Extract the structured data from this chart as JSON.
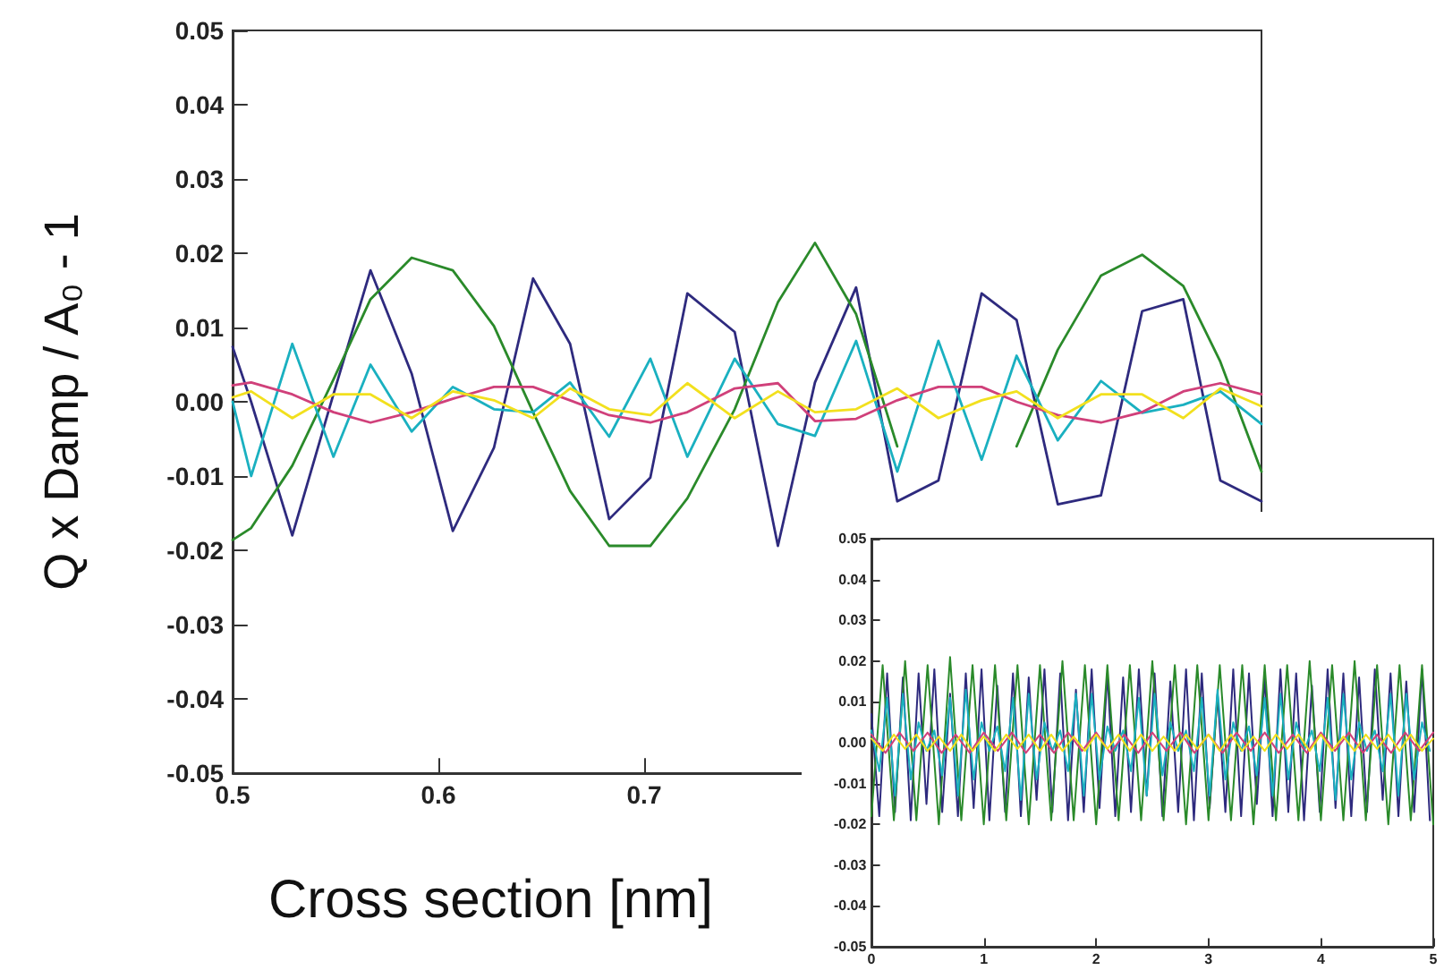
{
  "chart_data": [
    {
      "type": "line",
      "xlabel": "Cross section [nm]",
      "ylabel": "Q x Damp / A₀ - 1",
      "x": [
        0.5,
        0.509,
        0.529,
        0.549,
        0.567,
        0.587,
        0.607,
        0.627,
        0.646,
        0.664,
        0.683,
        0.703,
        0.721,
        0.744,
        0.765,
        0.783,
        0.803,
        0.823,
        0.843,
        0.864,
        0.881,
        0.901,
        0.922,
        0.942,
        0.962,
        0.98,
        1.0
      ],
      "series": [
        {
          "color": "#2e2a7e",
          "values": [
            0.0074,
            0.0,
            -0.018,
            0.001,
            0.0177,
            0.0038,
            -0.0174,
            -0.0062,
            0.0166,
            0.0078,
            -0.0158,
            -0.0102,
            0.0146,
            0.0094,
            -0.0194,
            0.0026,
            0.0154,
            -0.0134,
            -0.0106,
            0.0146,
            0.011,
            -0.0138,
            -0.0126,
            0.0122,
            0.0138,
            -0.0106,
            -0.0134
          ]
        },
        {
          "color": "#2a8a2a",
          "values": [
            -0.0186,
            -0.017,
            -0.0086,
            0.003,
            0.0138,
            0.0194,
            0.0177,
            0.0102,
            -0.0014,
            -0.012,
            -0.0194,
            -0.0194,
            -0.013,
            -0.001,
            0.0134,
            0.0214,
            0.0118,
            -0.006,
            null,
            null,
            -0.006,
            0.007,
            0.017,
            0.0198,
            0.0156,
            0.0054,
            -0.0094
          ]
        },
        {
          "color": "#1ab0c0",
          "values": [
            0.0,
            -0.01,
            0.0078,
            -0.0074,
            0.005,
            -0.004,
            0.002,
            -0.001,
            -0.0014,
            0.0026,
            -0.0047,
            0.0058,
            -0.0074,
            0.0058,
            -0.003,
            -0.0046,
            0.0082,
            -0.0094,
            0.0082,
            -0.0078,
            0.0062,
            -0.0052,
            0.0028,
            -0.0015,
            -0.0004,
            0.0014,
            -0.003
          ]
        },
        {
          "color": "#d0407a",
          "values": [
            0.0022,
            0.0026,
            0.001,
            -0.0014,
            -0.0028,
            -0.0014,
            0.0004,
            0.002,
            0.002,
            0.0002,
            -0.0018,
            -0.0028,
            -0.0014,
            0.0018,
            0.0025,
            -0.0026,
            -0.0023,
            0.0002,
            0.002,
            0.002,
            0.0,
            -0.0018,
            -0.0028,
            -0.0014,
            0.0014,
            0.0025,
            0.001
          ]
        },
        {
          "color": "#f2e01e",
          "values": [
            0.0006,
            0.0014,
            -0.0022,
            0.001,
            0.001,
            -0.0022,
            0.0014,
            0.0002,
            -0.0022,
            0.0018,
            -0.001,
            -0.0018,
            0.0025,
            -0.0022,
            0.0014,
            -0.0014,
            -0.001,
            0.0018,
            -0.0022,
            0.0002,
            0.0014,
            -0.0022,
            0.001,
            0.001,
            -0.0022,
            0.0018,
            -0.0006
          ]
        }
      ],
      "xlim": [
        0.5,
        1.0
      ],
      "xticks": [
        0.5,
        0.6,
        0.7
      ],
      "ylim": [
        -0.05,
        0.05
      ],
      "yticks": [
        -0.05,
        -0.04,
        -0.03,
        -0.02,
        -0.01,
        {
          "value": 0,
          "label": "0.00"
        },
        0.01,
        0.02,
        0.03,
        0.04,
        0.05
      ]
    },
    {
      "type": "line",
      "series": [
        {
          "color": "#2e2a7e",
          "x": [
            0,
            0.07,
            0.14,
            0.21,
            0.28,
            0.35,
            0.42,
            0.49,
            0.56,
            0.63,
            0.7,
            0.77,
            0.84,
            0.91,
            0.98,
            1.05,
            1.12,
            1.19,
            1.26,
            1.33,
            1.4,
            1.47,
            1.54,
            1.61,
            1.68,
            1.75,
            1.82,
            1.89,
            1.96,
            2.03,
            2.1,
            2.17,
            2.24,
            2.31,
            2.38,
            2.45,
            2.52,
            2.59,
            2.66,
            2.73,
            2.8,
            2.87,
            2.94,
            3.01,
            3.08,
            3.15,
            3.22,
            3.29,
            3.36,
            3.43,
            3.5,
            3.57,
            3.64,
            3.71,
            3.78,
            3.85,
            3.92,
            3.99,
            4.06,
            4.13,
            4.2,
            4.27,
            4.34,
            4.41,
            4.48,
            4.55,
            4.62,
            4.69,
            4.76,
            4.83,
            4.9,
            4.97
          ],
          "values": [
            0.007,
            -0.018,
            0.017,
            -0.017,
            0.016,
            -0.019,
            0.017,
            -0.015,
            0.018,
            -0.017,
            0.012,
            -0.018,
            0.017,
            -0.016,
            0.018,
            -0.019,
            0.014,
            -0.017,
            0.017,
            -0.018,
            0.016,
            -0.014,
            0.018,
            -0.017,
            0.017,
            -0.019,
            0.013,
            -0.017,
            0.018,
            -0.016,
            0.017,
            -0.018,
            0.016,
            -0.017,
            0.018,
            -0.013,
            0.017,
            -0.018,
            0.015,
            -0.017,
            0.018,
            -0.019,
            0.017,
            -0.016,
            0.012,
            -0.017,
            0.018,
            -0.018,
            0.017,
            -0.015,
            0.016,
            -0.018,
            0.018,
            -0.017,
            0.017,
            -0.019,
            0.014,
            -0.017,
            0.018,
            -0.016,
            0.017,
            -0.018,
            0.016,
            -0.017,
            0.018,
            -0.014,
            0.017,
            -0.018,
            0.015,
            -0.017,
            0.018,
            -0.019
          ]
        },
        {
          "color": "#2a8a2a",
          "x": [
            0,
            0.1,
            0.2,
            0.3,
            0.4,
            0.5,
            0.6,
            0.7,
            0.8,
            0.9,
            1,
            1.1,
            1.2,
            1.3,
            1.4,
            1.5,
            1.6,
            1.7,
            1.8,
            1.9,
            2,
            2.1,
            2.2,
            2.3,
            2.4,
            2.5,
            2.6,
            2.7,
            2.8,
            2.9,
            3,
            3.1,
            3.2,
            3.3,
            3.4,
            3.5,
            3.6,
            3.7,
            3.8,
            3.9,
            4,
            4.1,
            4.2,
            4.3,
            4.4,
            4.5,
            4.6,
            4.7,
            4.8,
            4.9,
            5
          ],
          "values": [
            -0.018,
            0.019,
            -0.019,
            0.02,
            -0.019,
            0.019,
            -0.02,
            0.021,
            -0.019,
            0.019,
            -0.02,
            0.019,
            -0.019,
            0.019,
            -0.02,
            0.019,
            -0.019,
            0.02,
            -0.019,
            0.019,
            -0.02,
            0.019,
            -0.019,
            0.019,
            -0.019,
            0.02,
            -0.019,
            0.019,
            -0.02,
            0.019,
            -0.019,
            0.019,
            -0.019,
            0.019,
            -0.02,
            0.019,
            -0.019,
            0.019,
            -0.019,
            0.02,
            -0.019,
            0.019,
            -0.019,
            0.02,
            -0.019,
            0.019,
            -0.02,
            0.019,
            -0.019,
            0.019,
            -0.02
          ]
        },
        {
          "color": "#1ab0c0",
          "x": [
            0,
            0.07,
            0.14,
            0.21,
            0.28,
            0.35,
            0.42,
            0.49,
            0.56,
            0.63,
            0.7,
            0.77,
            0.84,
            0.91,
            0.98,
            1.05,
            1.12,
            1.19,
            1.26,
            1.33,
            1.4,
            1.47,
            1.54,
            1.61,
            1.68,
            1.75,
            1.82,
            1.89,
            1.96,
            2.03,
            2.1,
            2.17,
            2.24,
            2.31,
            2.38,
            2.45,
            2.52,
            2.59,
            2.66,
            2.73,
            2.8,
            2.87,
            2.94,
            3.01,
            3.08,
            3.15,
            3.22,
            3.29,
            3.36,
            3.43,
            3.5,
            3.57,
            3.64,
            3.71,
            3.78,
            3.85,
            3.92,
            3.99,
            4.06,
            4.13,
            4.2,
            4.27,
            4.34,
            4.41,
            4.48,
            4.55,
            4.62,
            4.69,
            4.76,
            4.83,
            4.9,
            4.97
          ],
          "values": [
            0.003,
            -0.007,
            0.011,
            -0.013,
            0.012,
            -0.009,
            0.005,
            -0.002,
            0.003,
            -0.008,
            0.011,
            -0.013,
            0.013,
            -0.009,
            0.005,
            -0.002,
            0.004,
            -0.007,
            0.011,
            -0.014,
            0.012,
            -0.009,
            0.005,
            -0.002,
            0.003,
            -0.007,
            0.012,
            -0.013,
            0.012,
            -0.009,
            0.004,
            -0.002,
            0.003,
            -0.007,
            0.011,
            -0.013,
            0.012,
            -0.008,
            0.005,
            -0.002,
            0.003,
            -0.007,
            0.011,
            -0.013,
            0.013,
            -0.009,
            0.005,
            -0.002,
            0.004,
            -0.008,
            0.011,
            -0.013,
            0.012,
            -0.009,
            0.005,
            -0.002,
            0.003,
            -0.007,
            0.011,
            -0.014,
            0.012,
            -0.009,
            0.005,
            -0.002,
            0.003,
            -0.007,
            0.012,
            -0.013,
            0.012,
            -0.009,
            0.005,
            -0.002
          ]
        },
        {
          "color": "#d0407a",
          "x": [
            0,
            0.125,
            0.25,
            0.375,
            0.5,
            0.625,
            0.75,
            0.875,
            1,
            1.125,
            1.25,
            1.375,
            1.5,
            1.625,
            1.75,
            1.875,
            2,
            2.125,
            2.25,
            2.375,
            2.5,
            2.625,
            2.75,
            2.875,
            3,
            3.125,
            3.25,
            3.375,
            3.5,
            3.625,
            3.75,
            3.875,
            4,
            4.125,
            4.25,
            4.375,
            4.5,
            4.625,
            4.75,
            4.875,
            5
          ],
          "values": [
            0.002,
            -0.0025,
            0.0025,
            -0.002,
            0.0025,
            -0.0025,
            0.002,
            -0.0025,
            0.0025,
            -0.002,
            0.0025,
            -0.0025,
            0.002,
            -0.0025,
            0.0025,
            -0.002,
            0.0025,
            -0.0025,
            0.002,
            -0.0025,
            0.0025,
            -0.002,
            0.0025,
            -0.0025,
            0.002,
            -0.0025,
            0.0025,
            -0.002,
            0.0025,
            -0.0025,
            0.002,
            -0.0025,
            0.0025,
            -0.002,
            0.0025,
            -0.0025,
            0.002,
            -0.0025,
            0.0025,
            -0.002,
            0.0025
          ]
        },
        {
          "color": "#f2e01e",
          "x": [
            0,
            0.1,
            0.2,
            0.3,
            0.4,
            0.5,
            0.6,
            0.7,
            0.8,
            0.9,
            1,
            1.1,
            1.2,
            1.3,
            1.4,
            1.5,
            1.6,
            1.7,
            1.8,
            1.9,
            2,
            2.1,
            2.2,
            2.3,
            2.4,
            2.5,
            2.6,
            2.7,
            2.8,
            2.9,
            3,
            3.1,
            3.2,
            3.3,
            3.4,
            3.5,
            3.6,
            3.7,
            3.8,
            3.9,
            4,
            4.1,
            4.2,
            4.3,
            4.4,
            4.5,
            4.6,
            4.7,
            4.8,
            4.9,
            5
          ],
          "values": [
            0.001,
            -0.002,
            0.002,
            -0.0015,
            0.002,
            -0.002,
            0.0015,
            -0.002,
            0.002,
            -0.002,
            0.0015,
            -0.002,
            0.002,
            -0.0015,
            0.002,
            -0.002,
            0.002,
            -0.002,
            0.0015,
            -0.002,
            0.002,
            -0.0015,
            0.002,
            -0.002,
            0.002,
            -0.002,
            0.0015,
            -0.002,
            0.002,
            -0.0015,
            0.002,
            -0.002,
            0.002,
            -0.002,
            0.0015,
            -0.002,
            0.002,
            -0.0015,
            0.002,
            -0.002,
            0.002,
            -0.002,
            0.0015,
            -0.002,
            0.002,
            -0.0015,
            0.002,
            -0.002,
            0.002,
            -0.002,
            0.001
          ]
        }
      ],
      "xlim": [
        0,
        5
      ],
      "xticks": [
        0,
        1,
        2,
        3,
        4,
        5
      ],
      "ylim": [
        -0.05,
        0.05
      ],
      "yticks": [
        -0.05,
        -0.04,
        -0.03,
        -0.02,
        -0.01,
        {
          "value": 0,
          "label": "0.00"
        },
        0.01,
        0.02,
        0.03,
        0.04,
        0.05
      ]
    }
  ]
}
